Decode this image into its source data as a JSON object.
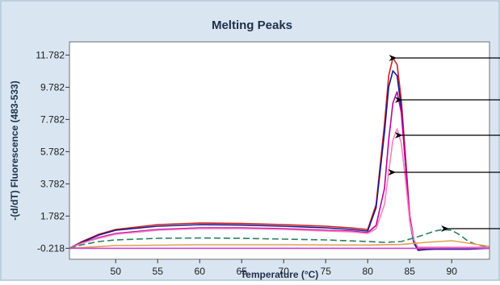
{
  "chart_data": {
    "type": "line",
    "title": "Melting Peaks",
    "xlabel": "Temperature (°C)",
    "ylabel": "-(d/dT) Fluorescence (483-533)",
    "xlim": [
      44.5,
      94.5
    ],
    "ylim": [
      -0.9,
      12.6
    ],
    "x_ticks": [
      50,
      55,
      60,
      65,
      70,
      75,
      80,
      85,
      90
    ],
    "y_ticks": [
      -0.218,
      1.782,
      3.782,
      5.782,
      7.782,
      9.782,
      11.782
    ],
    "y_tick_labels": [
      "-0.218",
      "1.782",
      "3.782",
      "5.782",
      "7.782",
      "9.782",
      "11.782"
    ],
    "grid": false,
    "legend": "none",
    "colors": {
      "background": "#d9e6f2",
      "plot_background": "#ffffff",
      "title": "#1f2f4a"
    },
    "series": [
      {
        "color": "#cc2020",
        "x": [
          44.5,
          46,
          48,
          50,
          55,
          60,
          65,
          70,
          75,
          78,
          80,
          81,
          82,
          82.5,
          83,
          83.5,
          84,
          84.5,
          85,
          85.5,
          86,
          87,
          88,
          90,
          92,
          94.5
        ],
        "y": [
          -0.218,
          0.2,
          0.65,
          0.95,
          1.25,
          1.35,
          1.32,
          1.25,
          1.15,
          1.05,
          0.95,
          2.5,
          7.5,
          10.5,
          11.6,
          11.2,
          9.0,
          5.5,
          1.8,
          0.2,
          -0.3,
          -0.25,
          -0.25,
          -0.25,
          -0.25,
          -0.2
        ]
      },
      {
        "color": "#1a1a8c",
        "x": [
          44.5,
          46,
          48,
          50,
          55,
          60,
          65,
          70,
          75,
          78,
          80,
          81,
          82,
          82.5,
          83,
          83.5,
          84,
          84.5,
          85,
          85.5,
          86,
          87,
          88,
          90,
          92,
          94.5
        ],
        "y": [
          -0.218,
          0.15,
          0.6,
          0.9,
          1.15,
          1.25,
          1.22,
          1.15,
          1.05,
          0.95,
          0.85,
          2.3,
          7.0,
          9.8,
          10.8,
          10.5,
          8.5,
          5.0,
          1.5,
          0.1,
          -0.35,
          -0.3,
          -0.28,
          -0.28,
          -0.28,
          -0.22
        ]
      },
      {
        "color": "#c000a0",
        "x": [
          44.5,
          46,
          48,
          50,
          55,
          60,
          65,
          70,
          75,
          78,
          80,
          81,
          82,
          82.5,
          83,
          83.5,
          84,
          84.5,
          85,
          85.5,
          86,
          87,
          88,
          90,
          92,
          94.5
        ],
        "y": [
          -0.218,
          0.1,
          0.45,
          0.7,
          0.95,
          1.05,
          1.05,
          1.0,
          0.9,
          0.85,
          0.75,
          1.2,
          3.5,
          6.5,
          8.8,
          9.5,
          8.2,
          5.0,
          1.8,
          0.3,
          -0.2,
          -0.2,
          -0.2,
          -0.2,
          -0.2,
          -0.2
        ]
      },
      {
        "color": "#ff80c0",
        "x": [
          44.5,
          46,
          48,
          50,
          55,
          60,
          65,
          70,
          75,
          78,
          80,
          81,
          82,
          82.5,
          83,
          83.5,
          84,
          84.5,
          85,
          85.5,
          86,
          87,
          88,
          90,
          92,
          94.5
        ],
        "y": [
          -0.218,
          0.1,
          0.4,
          0.65,
          0.9,
          1.0,
          1.0,
          0.95,
          0.85,
          0.8,
          0.7,
          1.0,
          2.5,
          4.5,
          6.5,
          7.2,
          6.3,
          4.0,
          1.5,
          0.3,
          -0.15,
          -0.15,
          -0.15,
          -0.15,
          -0.15,
          -0.15
        ]
      },
      {
        "color": "#2a8060",
        "dashed": true,
        "x": [
          44.5,
          46,
          48,
          50,
          55,
          60,
          65,
          70,
          75,
          80,
          82,
          84,
          86,
          88,
          89,
          90,
          91,
          92,
          93,
          94.5
        ],
        "y": [
          -0.218,
          0.0,
          0.2,
          0.3,
          0.4,
          0.42,
          0.4,
          0.35,
          0.3,
          0.2,
          0.15,
          0.2,
          0.5,
          0.85,
          0.95,
          0.9,
          0.6,
          0.2,
          0.0,
          -0.15
        ]
      },
      {
        "color": "#e0a050",
        "x": [
          44.5,
          50,
          60,
          70,
          80,
          84,
          87,
          90,
          92,
          94.5
        ],
        "y": [
          -0.218,
          -0.05,
          0.0,
          0.0,
          -0.02,
          0.02,
          0.15,
          0.25,
          0.1,
          -0.1
        ]
      },
      {
        "color": "#d040d0",
        "x": [
          44.5,
          94.5
        ],
        "y": [
          -0.218,
          -0.218
        ]
      }
    ],
    "annotations": [
      {
        "type": "arrow",
        "x": 83.3,
        "y": 11.6
      },
      {
        "type": "arrow",
        "x": 84.0,
        "y": 9.0
      },
      {
        "type": "arrow",
        "x": 84.0,
        "y": 6.8
      },
      {
        "type": "arrow",
        "x": 83.2,
        "y": 4.5
      },
      {
        "type": "arrow",
        "x": 89.5,
        "y": 1.0
      }
    ]
  }
}
